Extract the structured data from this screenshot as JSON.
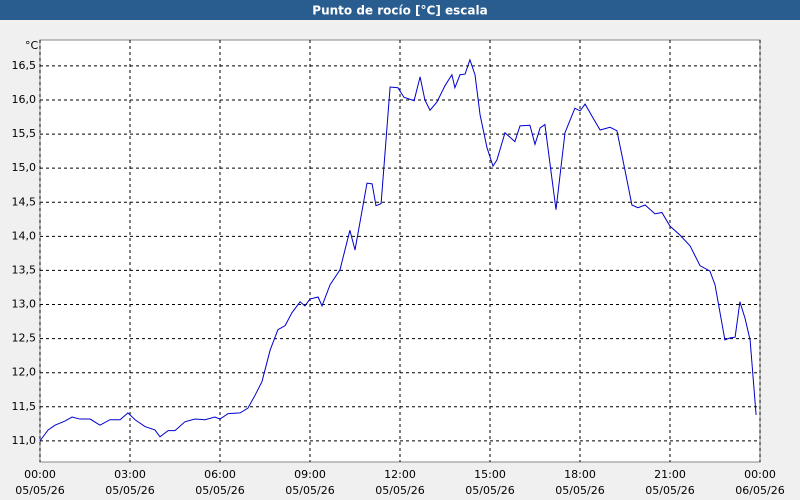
{
  "chart_data": {
    "type": "line",
    "title": "Punto de rocío [°C] escala",
    "y_unit": "°C",
    "x": [
      0,
      0.27,
      0.5,
      0.83,
      1.07,
      1.33,
      1.67,
      2.0,
      2.33,
      2.67,
      2.93,
      3.17,
      3.5,
      3.83,
      4.0,
      4.27,
      4.5,
      4.83,
      5.17,
      5.5,
      5.83,
      6.0,
      6.27,
      6.67,
      6.93,
      7.17,
      7.4,
      7.67,
      7.93,
      8.17,
      8.4,
      8.67,
      8.83,
      9.0,
      9.27,
      9.4,
      9.67,
      10.0,
      10.33,
      10.5,
      10.9,
      11.07,
      11.2,
      11.37,
      11.67,
      11.93,
      12.13,
      12.47,
      12.67,
      12.83,
      13.0,
      13.23,
      13.5,
      13.73,
      13.83,
      14.0,
      14.17,
      14.33,
      14.5,
      14.67,
      14.9,
      15.1,
      15.23,
      15.5,
      15.83,
      16.0,
      16.33,
      16.5,
      16.67,
      16.83,
      17.2,
      17.5,
      17.83,
      18.0,
      18.17,
      18.43,
      18.67,
      19.0,
      19.23,
      19.5,
      19.73,
      19.93,
      20.17,
      20.5,
      20.73,
      21.0,
      21.33,
      21.67,
      22.0,
      22.33,
      22.5,
      22.83,
      23.0,
      23.17,
      23.33,
      23.5,
      23.67,
      23.87
    ],
    "series": [
      {
        "name": "Punto de rocío",
        "color": "#0000cc",
        "values": [
          11.0,
          11.16,
          11.23,
          11.29,
          11.35,
          11.32,
          11.32,
          11.23,
          11.31,
          11.31,
          11.41,
          11.31,
          11.21,
          11.16,
          11.06,
          11.15,
          11.15,
          11.28,
          11.32,
          11.31,
          11.35,
          11.32,
          11.4,
          11.41,
          11.48,
          11.67,
          11.87,
          12.33,
          12.63,
          12.69,
          12.88,
          13.04,
          12.98,
          13.08,
          13.11,
          12.98,
          13.29,
          13.51,
          14.09,
          13.8,
          14.78,
          14.77,
          14.45,
          14.48,
          16.19,
          16.18,
          16.04,
          15.99,
          16.34,
          16.0,
          15.85,
          15.97,
          16.21,
          16.37,
          16.18,
          16.37,
          16.38,
          16.59,
          16.37,
          15.78,
          15.3,
          15.03,
          15.12,
          15.52,
          15.39,
          15.62,
          15.63,
          15.35,
          15.59,
          15.64,
          14.39,
          15.52,
          15.88,
          15.84,
          15.94,
          15.74,
          15.56,
          15.6,
          15.55,
          14.97,
          14.46,
          14.42,
          14.46,
          14.33,
          14.35,
          14.15,
          14.02,
          13.86,
          13.57,
          13.49,
          13.29,
          12.48,
          12.51,
          12.52,
          13.04,
          12.8,
          12.48,
          11.38
        ]
      }
    ],
    "xlim": [
      0,
      24
    ],
    "xticks": [
      {
        "value": 0,
        "label": "00:00"
      },
      {
        "value": 3,
        "label": "03:00"
      },
      {
        "value": 6,
        "label": "06:00"
      },
      {
        "value": 9,
        "label": "09:00"
      },
      {
        "value": 12,
        "label": "12:00"
      },
      {
        "value": 15,
        "label": "15:00"
      },
      {
        "value": 18,
        "label": "18:00"
      },
      {
        "value": 21,
        "label": "21:00"
      },
      {
        "value": 24,
        "label": "00:00"
      }
    ],
    "xtick_dates": [
      "05/05/26",
      "05/05/26",
      "05/05/26",
      "05/05/26",
      "05/05/26",
      "05/05/26",
      "05/05/26",
      "05/05/26",
      "06/05/26"
    ],
    "ylim": [
      10.69,
      16.88
    ],
    "yticks": [
      {
        "value": 11,
        "label": "11,0"
      },
      {
        "value": 11.5,
        "label": "11,5"
      },
      {
        "value": 12,
        "label": "12,0"
      },
      {
        "value": 12.5,
        "label": "12,5"
      },
      {
        "value": 13,
        "label": "13,0"
      },
      {
        "value": 13.5,
        "label": "13,5"
      },
      {
        "value": 14,
        "label": "14,0"
      },
      {
        "value": 14.5,
        "label": "14,5"
      },
      {
        "value": 15,
        "label": "15,0"
      },
      {
        "value": 15.5,
        "label": "15,5"
      },
      {
        "value": 16,
        "label": "16,0"
      },
      {
        "value": 16.5,
        "label": "16,5"
      }
    ],
    "grid": true
  }
}
